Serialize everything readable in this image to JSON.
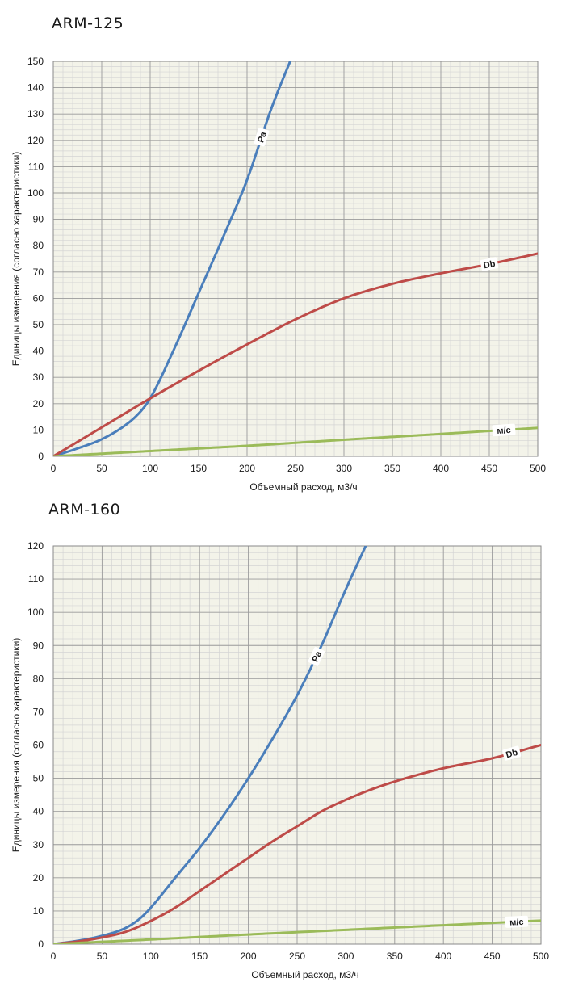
{
  "chart_data": [
    {
      "type": "line",
      "title": "ARM-125",
      "xlabel": "Объемный расход, м3/ч",
      "ylabel": "Единицы измерения (согласно характеристики)",
      "xlim": [
        0,
        500
      ],
      "ylim": [
        0,
        150
      ],
      "x_ticks": [
        "0",
        "50",
        "100",
        "150",
        "200",
        "250",
        "300",
        "350",
        "400",
        "450",
        "500"
      ],
      "y_ticks": [
        "0",
        "10",
        "20",
        "30",
        "40",
        "50",
        "60",
        "70",
        "80",
        "90",
        "100",
        "110",
        "120",
        "130",
        "140",
        "150"
      ],
      "grid": true,
      "plot_background": "#f3f3e9",
      "series": [
        {
          "name": "Pa",
          "color": "#4a7ebb",
          "x": [
            0,
            25,
            50,
            75,
            90,
            100,
            125,
            150,
            175,
            200,
            225,
            250
          ],
          "y": [
            0,
            3,
            6.5,
            12,
            17,
            22,
            41,
            62,
            83,
            105,
            132,
            155
          ]
        },
        {
          "name": "Db",
          "color": "#be4b48",
          "x": [
            0,
            50,
            100,
            150,
            200,
            250,
            300,
            350,
            400,
            450,
            500
          ],
          "y": [
            0,
            11,
            22,
            32.5,
            42.5,
            52,
            60,
            65.5,
            69.5,
            73,
            77
          ]
        },
        {
          "name": "м/с",
          "color": "#9bbb59",
          "x": [
            0,
            100,
            200,
            300,
            400,
            500
          ],
          "y": [
            0,
            2,
            4,
            6.3,
            8.5,
            10.8
          ]
        }
      ]
    },
    {
      "type": "line",
      "title": "ARM-160",
      "xlabel": "Объемный расход, м3/ч",
      "ylabel": "Единицы измерения (согласно характеристики)",
      "xlim": [
        0,
        500
      ],
      "ylim": [
        0,
        120
      ],
      "x_ticks": [
        "0",
        "50",
        "100",
        "150",
        "200",
        "250",
        "300",
        "350",
        "400",
        "450",
        "500"
      ],
      "y_ticks": [
        "0",
        "10",
        "20",
        "30",
        "40",
        "50",
        "60",
        "70",
        "80",
        "90",
        "100",
        "110",
        "120"
      ],
      "grid": true,
      "plot_background": "#f3f3e9",
      "series": [
        {
          "name": "Pa",
          "color": "#4a7ebb",
          "x": [
            0,
            25,
            50,
            75,
            90,
            100,
            125,
            150,
            175,
            200,
            225,
            250,
            275,
            300,
            325
          ],
          "y": [
            0,
            1,
            2.5,
            5,
            8,
            11,
            20,
            29,
            39,
            50,
            62,
            75,
            90,
            107,
            123
          ]
        },
        {
          "name": "Db",
          "color": "#be4b48",
          "x": [
            0,
            25,
            50,
            75,
            100,
            125,
            150,
            175,
            200,
            225,
            250,
            275,
            300,
            325,
            350,
            400,
            450,
            500
          ],
          "y": [
            0,
            0.8,
            2,
            3.8,
            7,
            11,
            16,
            21,
            26,
            31,
            35.5,
            40,
            43.5,
            46.5,
            49,
            53,
            56,
            60
          ]
        },
        {
          "name": "м/с",
          "color": "#9bbb59",
          "x": [
            0,
            100,
            200,
            300,
            400,
            500
          ],
          "y": [
            0,
            1.4,
            2.9,
            4.3,
            5.7,
            7.1
          ]
        }
      ]
    }
  ]
}
